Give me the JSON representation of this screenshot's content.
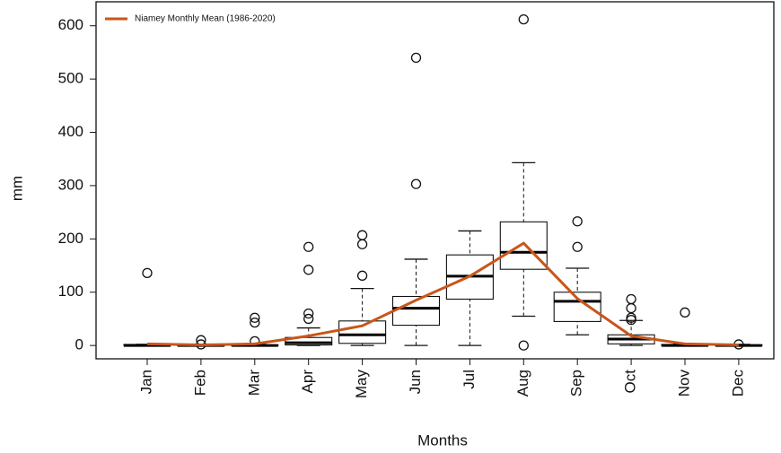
{
  "chart_data": {
    "type": "boxplot",
    "x_label": "Months",
    "y_label": "mm",
    "categories": [
      "Jan",
      "Feb",
      "Mar",
      "Apr",
      "May",
      "Jun",
      "Jul",
      "Aug",
      "Sep",
      "Oct",
      "Nov",
      "Dec"
    ],
    "boxes": [
      {
        "low": 0,
        "q1": 0,
        "median": 0,
        "q3": 2,
        "high": 2,
        "outliers": [
          136
        ]
      },
      {
        "low": 0,
        "q1": 0,
        "median": 0,
        "q3": 0,
        "high": 0,
        "outliers": [
          10,
          2
        ]
      },
      {
        "low": 0,
        "q1": 0,
        "median": 0,
        "q3": 1,
        "high": 2,
        "outliers": [
          52,
          43,
          8
        ]
      },
      {
        "low": 0,
        "q1": 1,
        "median": 5,
        "q3": 15,
        "high": 33,
        "outliers": [
          185,
          142,
          60,
          50
        ]
      },
      {
        "low": 0,
        "q1": 4,
        "median": 20,
        "q3": 46,
        "high": 107,
        "outliers": [
          207,
          190,
          131
        ]
      },
      {
        "low": 0,
        "q1": 38,
        "median": 70,
        "q3": 92,
        "high": 162,
        "outliers": [
          540,
          303
        ]
      },
      {
        "low": 0,
        "q1": 87,
        "median": 130,
        "q3": 170,
        "high": 215,
        "outliers": []
      },
      {
        "low": 55,
        "q1": 143,
        "median": 175,
        "q3": 232,
        "high": 343,
        "outliers": [
          612,
          0
        ]
      },
      {
        "low": 20,
        "q1": 45,
        "median": 83,
        "q3": 100,
        "high": 145,
        "outliers": [
          233,
          185
        ]
      },
      {
        "low": 0,
        "q1": 3,
        "median": 12,
        "q3": 20,
        "high": 47,
        "outliers": [
          87,
          70,
          52,
          48
        ]
      },
      {
        "low": 0,
        "q1": 0,
        "median": 0,
        "q3": 2,
        "high": 3,
        "outliers": [
          62
        ]
      },
      {
        "low": 0,
        "q1": 0,
        "median": 0,
        "q3": 1,
        "high": 2,
        "outliers": [
          2
        ]
      }
    ],
    "series": [
      {
        "name": "Niamey Monthly Mean (1986-2020)",
        "color": "#c8561a",
        "values": [
          3,
          1,
          3,
          18,
          37,
          85,
          130,
          192,
          88,
          18,
          3,
          1
        ]
      }
    ],
    "ylim": [
      -25,
      645
    ],
    "yticks": [
      0,
      100,
      200,
      300,
      400,
      500,
      600
    ],
    "legend": "top-left"
  }
}
